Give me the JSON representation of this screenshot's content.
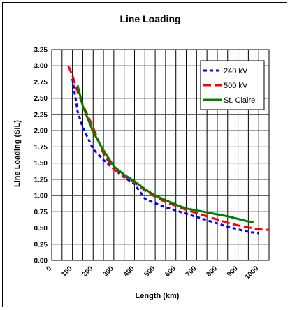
{
  "chart_data": {
    "type": "line",
    "title": "Line Loading",
    "xlabel": "Length (km)",
    "ylabel": "Line Loading (SIL)",
    "xlim": [
      0,
      1050
    ],
    "ylim": [
      0,
      3.25
    ],
    "x_ticks": [
      0,
      100,
      200,
      300,
      400,
      500,
      600,
      700,
      800,
      900,
      1000
    ],
    "x_tick_labels": [
      "0",
      "100",
      "200",
      "300",
      "400",
      "500",
      "600",
      "700",
      "800",
      "900",
      "1000"
    ],
    "y_ticks": [
      0,
      0.25,
      0.5,
      0.75,
      1.0,
      1.25,
      1.5,
      1.75,
      2.0,
      2.25,
      2.5,
      2.75,
      3.0,
      3.25
    ],
    "y_tick_labels": [
      "0.00",
      "0.25",
      "0.50",
      "0.75",
      "1.00",
      "1.25",
      "1.50",
      "1.75",
      "2.00",
      "2.25",
      "2.50",
      "2.75",
      "3.00",
      "3.25"
    ],
    "x_minor_step": 50,
    "grid": true,
    "legend_position": "top-right",
    "series": [
      {
        "name": "240 kV",
        "color": "#0000ff",
        "dash": "short-dash",
        "x": [
          100,
          125,
          150,
          200,
          250,
          300,
          350,
          400,
          450,
          500,
          550,
          600,
          650,
          700,
          750,
          800,
          850,
          900,
          950,
          1000
        ],
        "y": [
          2.8,
          2.3,
          2.05,
          1.72,
          1.55,
          1.41,
          1.28,
          1.18,
          0.95,
          0.88,
          0.82,
          0.77,
          0.72,
          0.67,
          0.62,
          0.57,
          0.52,
          0.48,
          0.44,
          0.42
        ]
      },
      {
        "name": "500 kV",
        "color": "#ff0000",
        "dash": "long-dash",
        "x": [
          80,
          100,
          125,
          150,
          200,
          250,
          300,
          350,
          400,
          450,
          500,
          550,
          600,
          650,
          700,
          750,
          800,
          850,
          900,
          950,
          1000,
          1050
        ],
        "y": [
          3.0,
          2.85,
          2.6,
          2.4,
          2.05,
          1.65,
          1.4,
          1.3,
          1.2,
          1.08,
          0.98,
          0.9,
          0.84,
          0.78,
          0.73,
          0.68,
          0.63,
          0.58,
          0.54,
          0.51,
          0.48,
          0.47
        ]
      },
      {
        "name": "St. Claire",
        "color": "#008000",
        "dash": "solid",
        "x": [
          125,
          150,
          200,
          250,
          300,
          350,
          400,
          450,
          500,
          550,
          600,
          650,
          700,
          750,
          800,
          850,
          900,
          950,
          975
        ],
        "y": [
          2.7,
          2.38,
          1.98,
          1.7,
          1.45,
          1.32,
          1.22,
          1.1,
          1.0,
          0.93,
          0.86,
          0.8,
          0.77,
          0.74,
          0.71,
          0.68,
          0.64,
          0.6,
          0.59
        ]
      }
    ]
  }
}
